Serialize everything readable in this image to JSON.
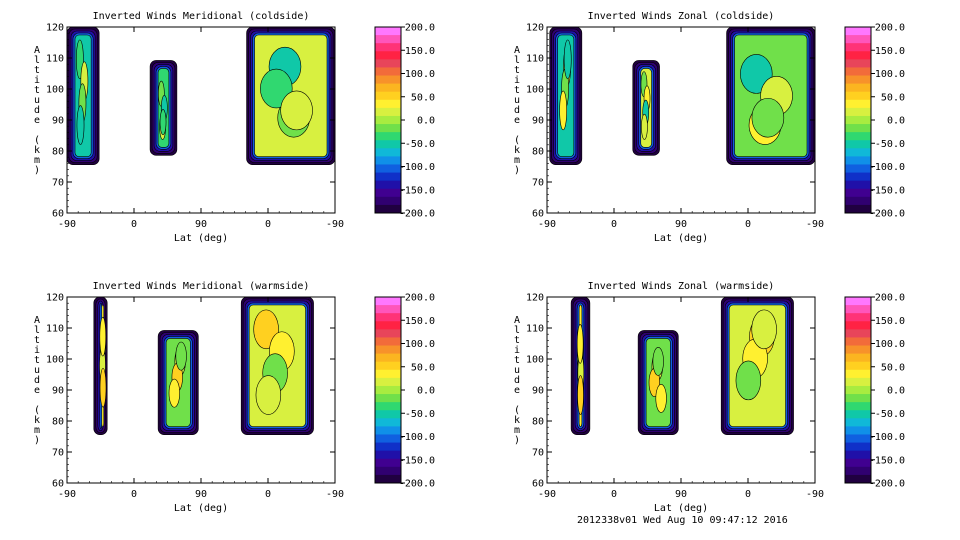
{
  "footer": "2012338v01 Wed Aug 10 09:47:12 2016",
  "colorbar": {
    "labels": [
      "200.0",
      "150.0",
      "100.0",
      "50.0",
      "0.0",
      "-50.0",
      "-100.0",
      "-150.0",
      "-200.0"
    ],
    "colors": [
      "#ff77ff",
      "#ff55bb",
      "#ff3377",
      "#ff2244",
      "#e8455a",
      "#f26b3a",
      "#f7922a",
      "#fbb520",
      "#ffd020",
      "#fff030",
      "#d8f040",
      "#a8ec40",
      "#70e04a",
      "#30d870",
      "#10c8a8",
      "#10b8d8",
      "#1090e8",
      "#1060e0",
      "#1030c8",
      "#2010a8",
      "#400090",
      "#300070",
      "#200040"
    ]
  },
  "chart_data": [
    {
      "type": "heatmap",
      "title": "Inverted Winds Meridional (coldside)",
      "xlabel": "Lat (deg)",
      "ylabel": "Altitude (km)",
      "xticks": [
        "-90",
        "0",
        "90",
        "0",
        "-90"
      ],
      "yticks": [
        60,
        70,
        80,
        90,
        100,
        110,
        120
      ],
      "ylim": [
        60,
        120
      ],
      "zlim": [
        -200,
        200
      ],
      "contour_interval_note": "",
      "dominant_values": [
        -60,
        -40,
        10,
        -10
      ]
    },
    {
      "type": "heatmap",
      "title": "Inverted Winds Zonal (coldside)",
      "xlabel": "Lat (deg)",
      "ylabel": "Altitude (km)",
      "xticks": [
        "-90",
        "0",
        "90",
        "0",
        "-90"
      ],
      "yticks": [
        60,
        70,
        80,
        90,
        100,
        110,
        120
      ],
      "ylim": [
        60,
        120
      ],
      "zlim": [
        -200,
        200
      ],
      "dominant_values": [
        -60,
        20,
        -20,
        40
      ]
    },
    {
      "type": "heatmap",
      "title": "Inverted Winds Meridional (warmside)",
      "xlabel": "Lat (deg)",
      "ylabel": "Altitude (km)",
      "xticks": [
        "-90",
        "0",
        "90",
        "0",
        "-90"
      ],
      "yticks": [
        60,
        70,
        80,
        90,
        100,
        110,
        120
      ],
      "ylim": [
        60,
        120
      ],
      "zlim": [
        -200,
        200
      ],
      "dominant_values": [
        40,
        -20,
        20,
        60
      ]
    },
    {
      "type": "heatmap",
      "title": "Inverted Winds Zonal (warmside)",
      "xlabel": "Lat (deg)",
      "ylabel": "Altitude (km)",
      "xticks": [
        "-90",
        "0",
        "90",
        "0",
        "-90"
      ],
      "yticks": [
        60,
        70,
        80,
        90,
        100,
        110,
        120
      ],
      "ylim": [
        60,
        120
      ],
      "zlim": [
        -200,
        200
      ],
      "dominant_values": [
        40,
        -20,
        20,
        60
      ]
    }
  ]
}
